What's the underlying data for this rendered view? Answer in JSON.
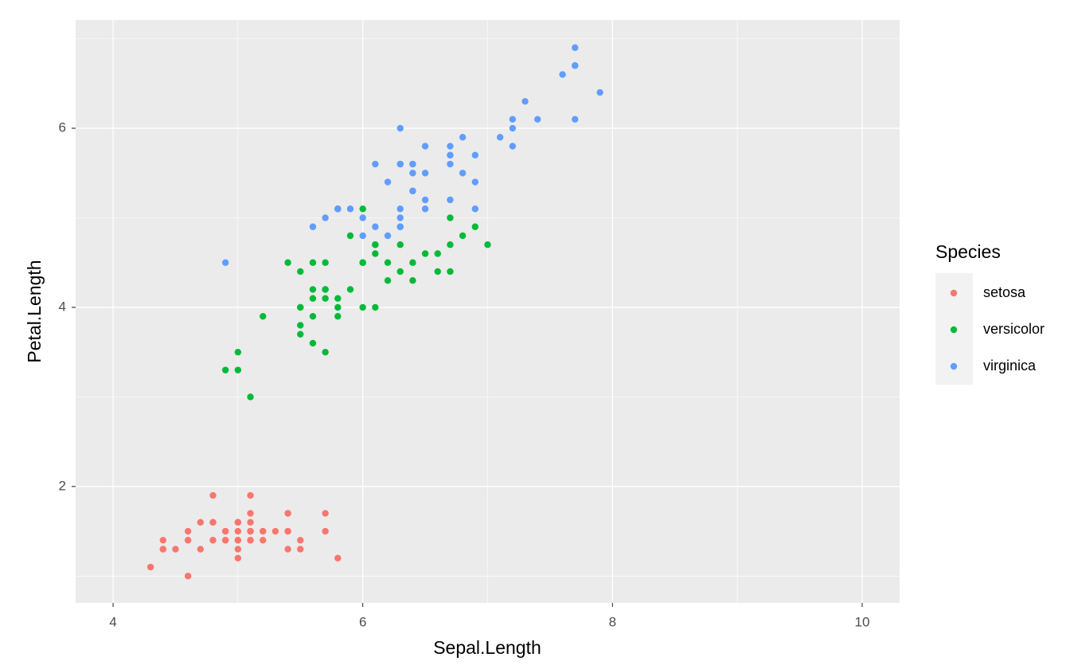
{
  "chart_data": {
    "type": "scatter",
    "x_label": "Sepal.Length",
    "y_label": "Petal.Length",
    "legend_title": "Species",
    "legend_position": "right",
    "grid": true,
    "xlim": [
      3.7,
      10.3
    ],
    "ylim": [
      0.7,
      7.21
    ],
    "xticks": [
      4,
      6,
      8,
      10
    ],
    "yticks": [
      2,
      4,
      6
    ],
    "x_minor_ticks": [
      5,
      7,
      9
    ],
    "y_minor_ticks": [
      1,
      3,
      5,
      7
    ],
    "series": [
      {
        "name": "setosa",
        "color": "#F8766D",
        "x": [
          5.1,
          4.9,
          4.7,
          4.6,
          5.0,
          5.4,
          4.6,
          5.0,
          4.4,
          4.9,
          5.4,
          4.8,
          4.8,
          4.3,
          5.8,
          5.7,
          5.4,
          5.1,
          5.7,
          5.1,
          5.4,
          5.1,
          4.6,
          5.1,
          4.8,
          5.0,
          5.0,
          5.2,
          5.2,
          4.7,
          4.8,
          5.4,
          5.2,
          5.5,
          4.9,
          5.0,
          5.5,
          4.9,
          4.4,
          5.1,
          5.0,
          4.5,
          4.4,
          5.0,
          5.1,
          4.8,
          5.1,
          4.6,
          5.3,
          5.0
        ],
        "values": [
          1.4,
          1.4,
          1.3,
          1.5,
          1.4,
          1.7,
          1.4,
          1.5,
          1.4,
          1.5,
          1.5,
          1.6,
          1.4,
          1.1,
          1.2,
          1.5,
          1.3,
          1.4,
          1.7,
          1.5,
          1.7,
          1.5,
          1.0,
          1.7,
          1.9,
          1.6,
          1.6,
          1.5,
          1.4,
          1.6,
          1.6,
          1.5,
          1.5,
          1.4,
          1.5,
          1.2,
          1.3,
          1.4,
          1.3,
          1.5,
          1.3,
          1.3,
          1.3,
          1.6,
          1.9,
          1.4,
          1.6,
          1.4,
          1.5,
          1.4
        ]
      },
      {
        "name": "versicolor",
        "color": "#00BA38",
        "x": [
          7.0,
          6.4,
          6.9,
          5.5,
          6.5,
          5.7,
          6.3,
          4.9,
          6.6,
          5.2,
          5.0,
          5.9,
          6.0,
          6.1,
          5.6,
          6.7,
          5.6,
          5.8,
          6.2,
          5.6,
          5.9,
          6.1,
          6.3,
          6.1,
          6.4,
          6.6,
          6.8,
          6.7,
          6.0,
          5.7,
          5.5,
          5.5,
          5.8,
          6.0,
          5.4,
          6.0,
          6.7,
          6.3,
          5.6,
          5.5,
          5.5,
          6.1,
          5.8,
          5.0,
          5.6,
          5.7,
          5.7,
          6.2,
          5.1,
          5.7
        ],
        "values": [
          4.7,
          4.5,
          4.9,
          4.0,
          4.6,
          4.5,
          4.7,
          3.3,
          4.6,
          3.9,
          3.5,
          4.2,
          4.0,
          4.7,
          3.6,
          4.4,
          4.5,
          4.1,
          4.5,
          3.9,
          4.8,
          4.0,
          4.9,
          4.7,
          4.3,
          4.4,
          4.8,
          5.0,
          4.5,
          3.5,
          3.8,
          3.7,
          3.9,
          5.1,
          4.5,
          4.5,
          4.7,
          4.4,
          4.1,
          4.0,
          4.4,
          4.6,
          4.0,
          3.3,
          4.2,
          4.2,
          4.2,
          4.3,
          3.0,
          4.1
        ]
      },
      {
        "name": "virginica",
        "color": "#619CFF",
        "x": [
          6.3,
          5.8,
          7.1,
          6.3,
          6.5,
          7.6,
          4.9,
          7.3,
          6.7,
          7.2,
          6.5,
          6.4,
          6.8,
          5.7,
          5.8,
          6.4,
          6.5,
          7.7,
          7.7,
          6.0,
          6.9,
          5.6,
          7.7,
          6.3,
          6.7,
          7.2,
          6.2,
          6.1,
          6.4,
          7.2,
          7.4,
          7.9,
          6.4,
          6.3,
          6.1,
          7.7,
          6.3,
          6.4,
          6.0,
          6.9,
          6.7,
          6.9,
          5.8,
          6.8,
          6.7,
          6.7,
          6.3,
          6.5,
          6.2,
          5.9
        ],
        "values": [
          6.0,
          5.1,
          5.9,
          5.6,
          5.8,
          6.6,
          4.5,
          6.3,
          5.8,
          6.1,
          5.1,
          5.3,
          5.5,
          5.0,
          5.1,
          5.3,
          5.5,
          6.7,
          6.9,
          5.0,
          5.7,
          4.9,
          6.7,
          4.9,
          5.7,
          6.0,
          4.8,
          4.9,
          5.6,
          5.8,
          6.1,
          6.4,
          5.6,
          5.1,
          5.6,
          6.1,
          5.6,
          5.5,
          4.8,
          5.4,
          5.6,
          5.1,
          5.1,
          5.9,
          5.7,
          5.2,
          5.0,
          5.2,
          5.4,
          5.1
        ]
      }
    ]
  }
}
